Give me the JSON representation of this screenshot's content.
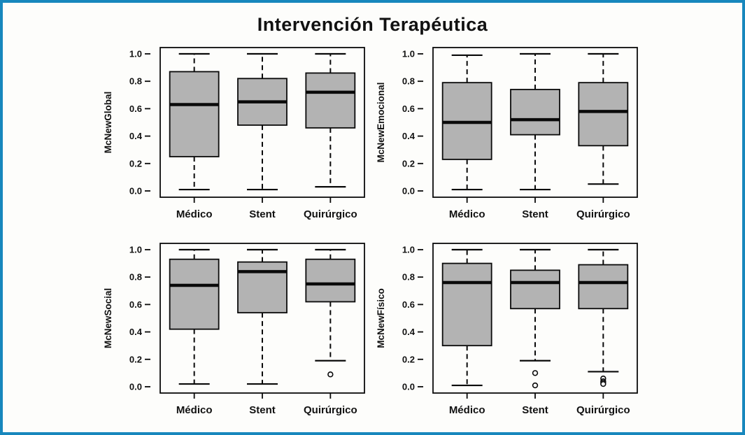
{
  "title": "Intervención Terapéutica",
  "colors": {
    "frame_border": "#1787bd",
    "background": "#fdfdfb",
    "box_fill": "#b3b3b3",
    "line": "#0a0a0a",
    "text": "#111111"
  },
  "chart_data": [
    {
      "type": "boxplot",
      "panel": "top-left",
      "ylabel": "McNewGlobal",
      "categories": [
        "Médico",
        "Stent",
        "Quirúrgico"
      ],
      "ylim": [
        0.0,
        1.0
      ],
      "yticks": [
        0.0,
        0.2,
        0.4,
        0.6,
        0.8,
        1.0
      ],
      "boxes": [
        {
          "category": "Médico",
          "whisker_low": 0.01,
          "q1": 0.25,
          "median": 0.63,
          "q3": 0.87,
          "whisker_high": 1.0,
          "outliers": []
        },
        {
          "category": "Stent",
          "whisker_low": 0.01,
          "q1": 0.48,
          "median": 0.65,
          "q3": 0.82,
          "whisker_high": 1.0,
          "outliers": []
        },
        {
          "category": "Quirúrgico",
          "whisker_low": 0.03,
          "q1": 0.46,
          "median": 0.72,
          "q3": 0.86,
          "whisker_high": 1.0,
          "outliers": []
        }
      ]
    },
    {
      "type": "boxplot",
      "panel": "top-right",
      "ylabel": "McNewEmocional",
      "categories": [
        "Médico",
        "Stent",
        "Quirúrgico"
      ],
      "ylim": [
        0.0,
        1.0
      ],
      "yticks": [
        0.0,
        0.2,
        0.4,
        0.6,
        0.8,
        1.0
      ],
      "boxes": [
        {
          "category": "Médico",
          "whisker_low": 0.01,
          "q1": 0.23,
          "median": 0.5,
          "q3": 0.79,
          "whisker_high": 0.99,
          "outliers": []
        },
        {
          "category": "Stent",
          "whisker_low": 0.01,
          "q1": 0.41,
          "median": 0.52,
          "q3": 0.74,
          "whisker_high": 1.0,
          "outliers": []
        },
        {
          "category": "Quirúrgico",
          "whisker_low": 0.05,
          "q1": 0.33,
          "median": 0.58,
          "q3": 0.79,
          "whisker_high": 1.0,
          "outliers": []
        }
      ]
    },
    {
      "type": "boxplot",
      "panel": "bottom-left",
      "ylabel": "McNewSocial",
      "categories": [
        "Médico",
        "Stent",
        "Quirúrgico"
      ],
      "ylim": [
        0.0,
        1.0
      ],
      "yticks": [
        0.0,
        0.2,
        0.4,
        0.6,
        0.8,
        1.0
      ],
      "boxes": [
        {
          "category": "Médico",
          "whisker_low": 0.02,
          "q1": 0.42,
          "median": 0.74,
          "q3": 0.93,
          "whisker_high": 1.0,
          "outliers": []
        },
        {
          "category": "Stent",
          "whisker_low": 0.02,
          "q1": 0.54,
          "median": 0.84,
          "q3": 0.91,
          "whisker_high": 1.0,
          "outliers": []
        },
        {
          "category": "Quirúrgico",
          "whisker_low": 0.19,
          "q1": 0.62,
          "median": 0.75,
          "q3": 0.93,
          "whisker_high": 1.0,
          "outliers": [
            0.09
          ]
        }
      ]
    },
    {
      "type": "boxplot",
      "panel": "bottom-right",
      "ylabel": "McNewFísico",
      "categories": [
        "Médico",
        "Stent",
        "Quirúrgico"
      ],
      "ylim": [
        0.0,
        1.0
      ],
      "yticks": [
        0.0,
        0.2,
        0.4,
        0.6,
        0.8,
        1.0
      ],
      "boxes": [
        {
          "category": "Médico",
          "whisker_low": 0.01,
          "q1": 0.3,
          "median": 0.76,
          "q3": 0.9,
          "whisker_high": 1.0,
          "outliers": []
        },
        {
          "category": "Stent",
          "whisker_low": 0.19,
          "q1": 0.57,
          "median": 0.76,
          "q3": 0.85,
          "whisker_high": 1.0,
          "outliers": [
            0.1,
            0.01
          ]
        },
        {
          "category": "Quirúrgico",
          "whisker_low": 0.11,
          "q1": 0.57,
          "median": 0.76,
          "q3": 0.89,
          "whisker_high": 1.0,
          "outliers": [
            0.06,
            0.04,
            0.03,
            0.02
          ]
        }
      ]
    }
  ]
}
